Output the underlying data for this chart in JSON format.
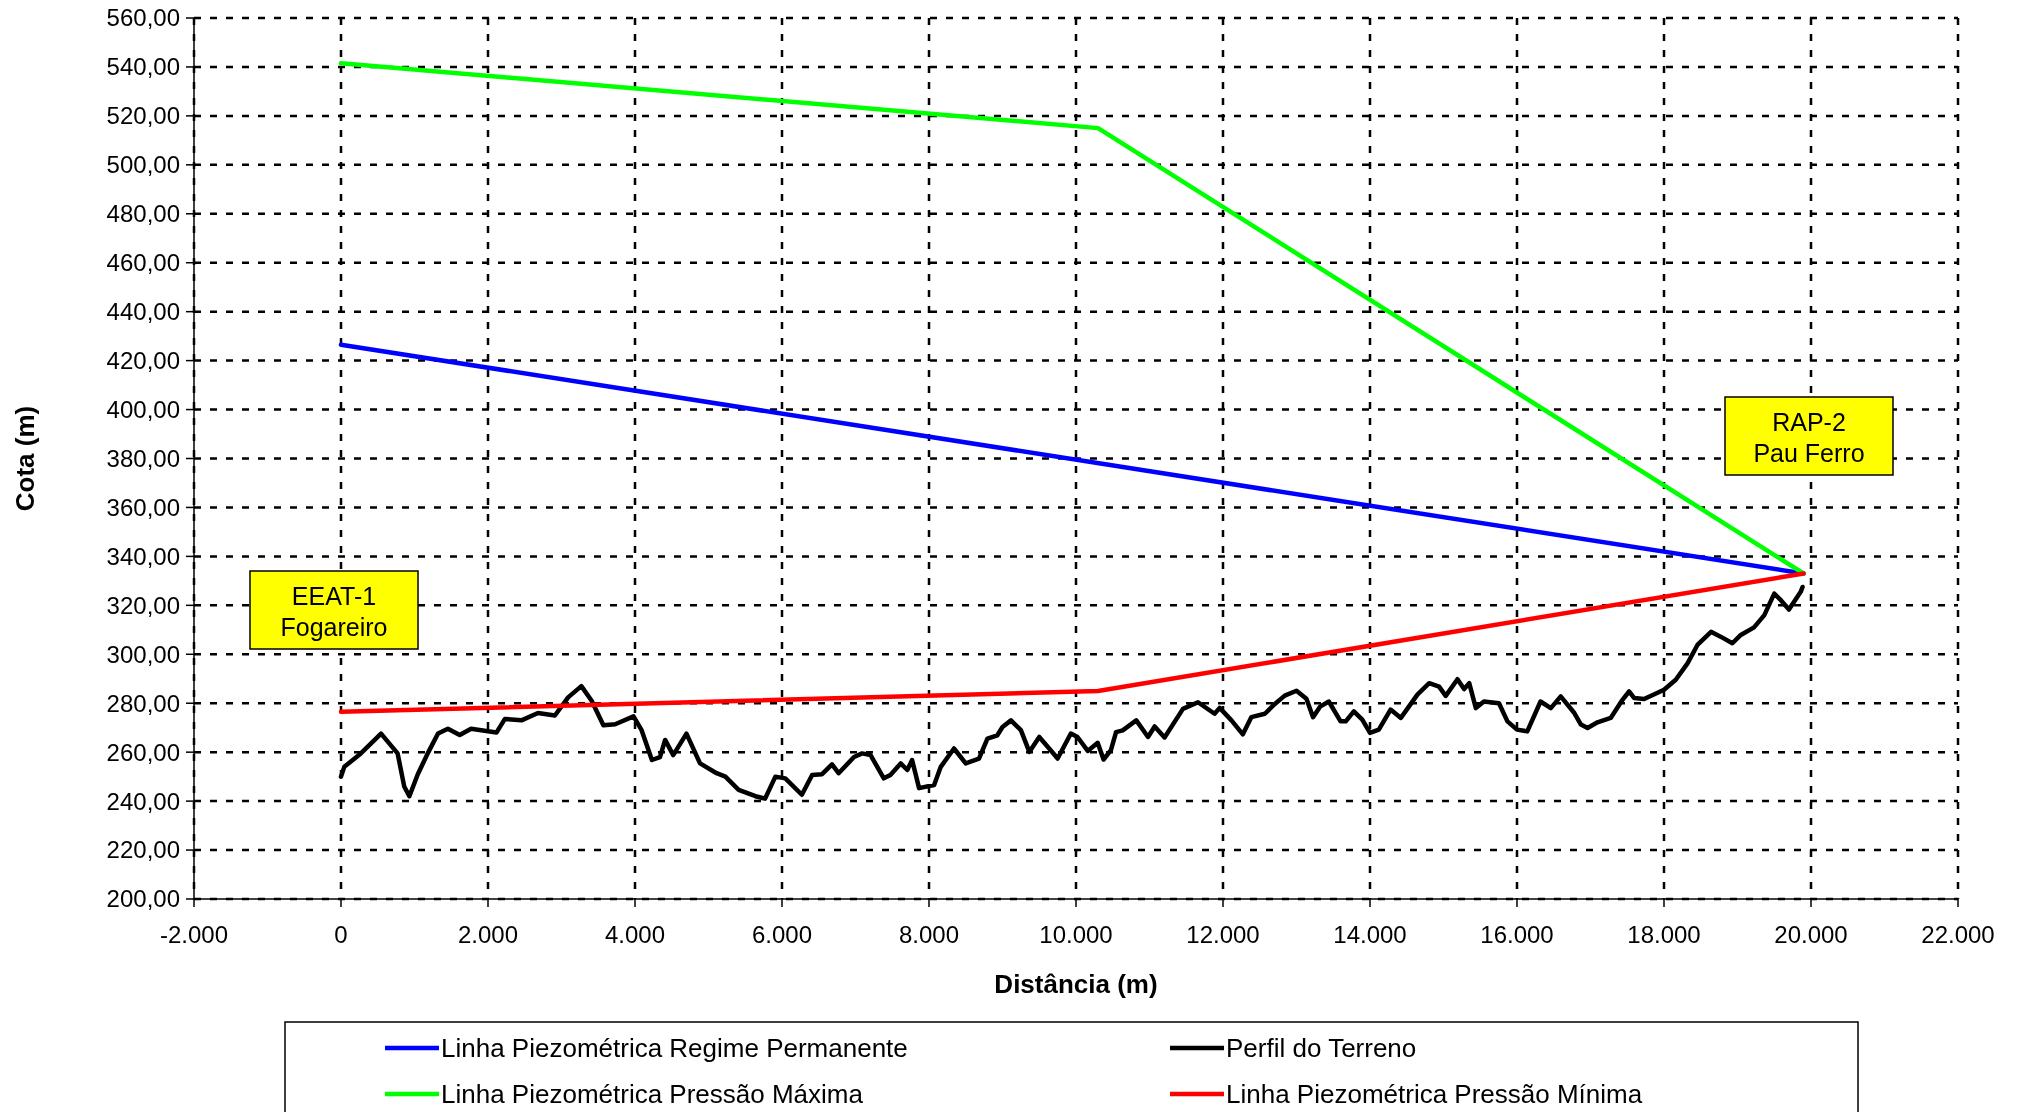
{
  "chart_data": {
    "type": "line",
    "xlabel": "Distância (m)",
    "ylabel": "Cota (m)",
    "xlim": [
      -2000,
      22000
    ],
    "xticks": [
      {
        "value": -2000,
        "label": "-2.000"
      },
      0,
      {
        "value": 2000,
        "label": "2.000"
      },
      {
        "value": 4000,
        "label": "4.000"
      },
      {
        "value": 6000,
        "label": "6.000"
      },
      {
        "value": 8000,
        "label": "8.000"
      },
      {
        "value": 10000,
        "label": "10.000"
      },
      {
        "value": 12000,
        "label": "12.000"
      },
      {
        "value": 14000,
        "label": "14.000"
      },
      {
        "value": 16000,
        "label": "16.000"
      },
      {
        "value": 18000,
        "label": "18.000"
      },
      {
        "value": 20000,
        "label": "20.000"
      },
      {
        "value": 22000,
        "label": "22.000"
      }
    ],
    "ylim": [
      200,
      560
    ],
    "yticks": [
      {
        "value": 200,
        "label": "200,00"
      },
      {
        "value": 220,
        "label": "220,00"
      },
      {
        "value": 240,
        "label": "240,00"
      },
      {
        "value": 260,
        "label": "260,00"
      },
      {
        "value": 280,
        "label": "280,00"
      },
      {
        "value": 300,
        "label": "300,00"
      },
      {
        "value": 320,
        "label": "320,00"
      },
      {
        "value": 340,
        "label": "340,00"
      },
      {
        "value": 360,
        "label": "360,00"
      },
      {
        "value": 380,
        "label": "380,00"
      },
      {
        "value": 400,
        "label": "400,00"
      },
      {
        "value": 420,
        "label": "420,00"
      },
      {
        "value": 440,
        "label": "440,00"
      },
      {
        "value": 460,
        "label": "460,00"
      },
      {
        "value": 480,
        "label": "480,00"
      },
      {
        "value": 500,
        "label": "500,00"
      },
      {
        "value": 520,
        "label": "520,00"
      },
      {
        "value": 540,
        "label": "540,00"
      },
      {
        "value": 560,
        "label": "560,00"
      }
    ],
    "grid": true,
    "legend": "bottom",
    "marker": "none",
    "line_style": "solid",
    "annotations": [
      "EEAT-1\nFogareiro",
      "RAP-2\nPau Ferro"
    ],
    "series": [
      {
        "name": "Linha Piezométrica Regime Permanente",
        "color": "#0000ff",
        "x": [
          0,
          19900
        ],
        "values": [
          426.5,
          333
        ]
      },
      {
        "name": "Perfil do Terreno",
        "color": "#000000",
        "x": [
          0,
          45,
          270,
          545,
          770,
          860,
          930,
          1045,
          1180,
          1320,
          1455,
          1615,
          1770,
          2115,
          2230,
          2455,
          2680,
          2910,
          3090,
          3270,
          3410,
          3570,
          3730,
          3980,
          4090,
          4230,
          4340,
          4410,
          4520,
          4700,
          4885,
          5110,
          5230,
          5410,
          5640,
          5770,
          5910,
          6045,
          6270,
          6410,
          6545,
          6680,
          6770,
          6980,
          7090,
          7205,
          7385,
          7475,
          7615,
          7705,
          7770,
          7865,
          8070,
          8160,
          8340,
          8500,
          8680,
          8795,
          8930,
          9000,
          9115,
          9250,
          9365,
          9500,
          9635,
          9750,
          9930,
          10020,
          10160,
          10295,
          10375,
          10475,
          10545,
          10635,
          10820,
          10980,
          11070,
          11205,
          11455,
          11660,
          11885,
          11955,
          12115,
          12270,
          12385,
          12570,
          12705,
          12840,
          13000,
          13135,
          13225,
          13320,
          13440,
          13600,
          13670,
          13780,
          13895,
          14000,
          14120,
          14280,
          14420,
          14645,
          14805,
          14940,
          15030,
          15190,
          15280,
          15350,
          15440,
          15550,
          15755,
          15870,
          16000,
          16140,
          16320,
          16460,
          16595,
          16780,
          16870,
          16960,
          17095,
          17275,
          17435,
          17525,
          17595,
          17730,
          18000,
          18160,
          18320,
          18455,
          18640,
          18770,
          18930,
          19045,
          19225,
          19365,
          19500,
          19590,
          19700,
          19860,
          19885
        ],
        "values": [
          250,
          254,
          259.5,
          267.6,
          259.5,
          246,
          242,
          251,
          259.5,
          267.6,
          269.6,
          267,
          269.6,
          268,
          273.6,
          273,
          276,
          275,
          282.4,
          287,
          281,
          271,
          271.4,
          274.6,
          269,
          256.8,
          258,
          265,
          258.8,
          267.6,
          255.4,
          251.4,
          250,
          244.6,
          242,
          241,
          250,
          249.3,
          242.6,
          250.7,
          251,
          255,
          251.4,
          258,
          259.5,
          258.8,
          249.3,
          250.7,
          255.4,
          252.7,
          256.8,
          245.3,
          246.6,
          254,
          261.5,
          255.4,
          257.4,
          265.5,
          266.9,
          270.3,
          273,
          269,
          260.1,
          266.2,
          261.5,
          257.4,
          267.6,
          266.2,
          260.5,
          263.8,
          257,
          260.8,
          268.2,
          268.9,
          273,
          266.2,
          270.5,
          266,
          277.7,
          280.4,
          275.7,
          278.1,
          273,
          267.3,
          274.3,
          275.7,
          279.7,
          283.1,
          285.1,
          281.8,
          274.3,
          278.6,
          280.7,
          272.6,
          272.6,
          276.7,
          273.3,
          267.9,
          269.2,
          277.4,
          274,
          283.5,
          288.2,
          286.8,
          283,
          289.8,
          285.8,
          288.2,
          278,
          280.7,
          280,
          272.6,
          269.2,
          268.5,
          280.7,
          278,
          282.8,
          276,
          271.3,
          269.9,
          272.2,
          274,
          281.4,
          284.8,
          282.1,
          281.7,
          285.5,
          289.6,
          296.3,
          303.8,
          309.2,
          307.2,
          304.5,
          307.9,
          311,
          316,
          324.8,
          322.1,
          318.3,
          325.5,
          327.5
        ]
      },
      {
        "name": "Linha Piezométrica Pressão Máxima",
        "color": "#00ff00",
        "x": [
          0,
          10300,
          19900
        ],
        "values": [
          541.5,
          515,
          333
        ]
      },
      {
        "name": "Linha Piezométrica Pressão Mínima",
        "color": "#ff0000",
        "x": [
          0,
          10300,
          19900
        ],
        "values": [
          276.5,
          285,
          333
        ]
      }
    ]
  }
}
